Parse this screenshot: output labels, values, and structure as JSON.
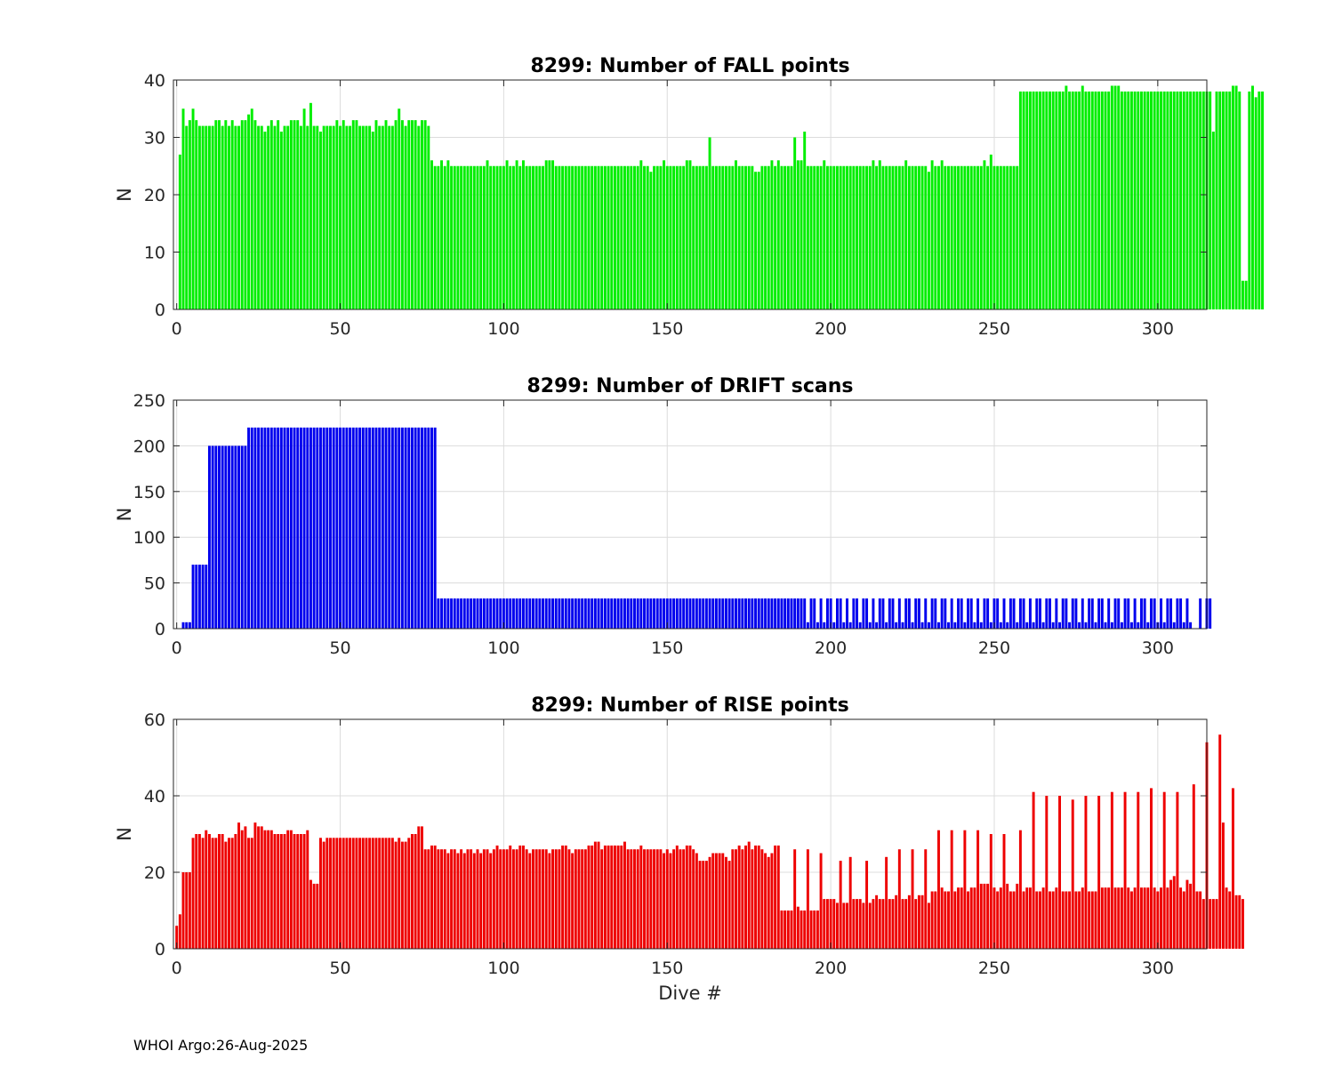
{
  "footer": {
    "text": "WHOI Argo:26-Aug-2025"
  },
  "chart_data": [
    {
      "type": "bar",
      "id": "fall",
      "title": "8299: Number of FALL points",
      "xlabel": "",
      "ylabel": "N",
      "xlim": [
        -1,
        315
      ],
      "ylim": [
        0,
        40
      ],
      "xticks": [
        0,
        50,
        100,
        150,
        200,
        250,
        300
      ],
      "yticks": [
        0,
        10,
        20,
        30,
        40
      ],
      "grid": true,
      "color": "#00ee00",
      "x_start": 0,
      "values": [
        0,
        27,
        35,
        32,
        33,
        35,
        33,
        32,
        32,
        32,
        32,
        32,
        33,
        33,
        32,
        33,
        32,
        33,
        32,
        32,
        33,
        33,
        34,
        35,
        33,
        32,
        32,
        31,
        32,
        33,
        32,
        33,
        31,
        32,
        32,
        33,
        33,
        33,
        32,
        35,
        32,
        36,
        32,
        32,
        31,
        32,
        32,
        32,
        32,
        33,
        32,
        33,
        32,
        32,
        33,
        33,
        32,
        32,
        32,
        32,
        31,
        33,
        32,
        32,
        33,
        32,
        32,
        33,
        35,
        33,
        32,
        33,
        33,
        33,
        32,
        33,
        33,
        32,
        26,
        25,
        25,
        26,
        25,
        26,
        25,
        25,
        25,
        25,
        25,
        25,
        25,
        25,
        25,
        25,
        25,
        26,
        25,
        25,
        25,
        25,
        25,
        26,
        25,
        25,
        26,
        25,
        26,
        25,
        25,
        25,
        25,
        25,
        25,
        26,
        26,
        26,
        25,
        25,
        25,
        25,
        25,
        25,
        25,
        25,
        25,
        25,
        25,
        25,
        25,
        25,
        25,
        25,
        25,
        25,
        25,
        25,
        25,
        25,
        25,
        25,
        25,
        25,
        26,
        25,
        25,
        24,
        25,
        25,
        25,
        26,
        25,
        25,
        25,
        25,
        25,
        25,
        26,
        26,
        25,
        25,
        25,
        25,
        25,
        30,
        25,
        25,
        25,
        25,
        25,
        25,
        25,
        26,
        25,
        25,
        25,
        25,
        25,
        24,
        24,
        25,
        25,
        25,
        26,
        25,
        26,
        25,
        25,
        25,
        25,
        30,
        26,
        26,
        31,
        25,
        25,
        25,
        25,
        25,
        26,
        25,
        25,
        25,
        25,
        25,
        25,
        25,
        25,
        25,
        25,
        25,
        25,
        25,
        25,
        26,
        25,
        26,
        25,
        25,
        25,
        25,
        25,
        25,
        25,
        26,
        25,
        25,
        25,
        25,
        25,
        25,
        24,
        26,
        25,
        25,
        26,
        25,
        25,
        25,
        25,
        25,
        25,
        25,
        25,
        25,
        25,
        25,
        25,
        26,
        25,
        27,
        25,
        25,
        25,
        25,
        25,
        25,
        25,
        25,
        38,
        38,
        38,
        38,
        38,
        38,
        38,
        38,
        38,
        38,
        38,
        38,
        38,
        38,
        39,
        38,
        38,
        38,
        38,
        39,
        38,
        38,
        38,
        38,
        38,
        38,
        38,
        38,
        39,
        39,
        39,
        38,
        38,
        38,
        38,
        38,
        38,
        38,
        38,
        38,
        38,
        38,
        38,
        38,
        38,
        38,
        38,
        38,
        38,
        38,
        38,
        38,
        38,
        38,
        38,
        38,
        38,
        38,
        38,
        31,
        38,
        38,
        38,
        38,
        38,
        39,
        39,
        38,
        5,
        5,
        38,
        39,
        37,
        38,
        38
      ]
    },
    {
      "type": "bar",
      "id": "drift",
      "title": "8299: Number of DRIFT scans",
      "xlabel": "",
      "ylabel": "N",
      "xlim": [
        -1,
        315
      ],
      "ylim": [
        0,
        250
      ],
      "xticks": [
        0,
        50,
        100,
        150,
        200,
        250,
        300
      ],
      "yticks": [
        0,
        50,
        100,
        150,
        200,
        250
      ],
      "grid": true,
      "color": "#0000ee",
      "x_start": 0,
      "values": [
        0,
        0,
        7,
        7,
        7,
        70,
        70,
        70,
        70,
        70,
        200,
        200,
        200,
        200,
        200,
        200,
        200,
        200,
        200,
        200,
        200,
        200,
        220,
        220,
        220,
        220,
        220,
        220,
        220,
        220,
        220,
        220,
        220,
        220,
        220,
        220,
        220,
        220,
        220,
        220,
        220,
        220,
        220,
        220,
        220,
        220,
        220,
        220,
        220,
        220,
        220,
        220,
        220,
        220,
        220,
        220,
        220,
        220,
        220,
        220,
        220,
        220,
        220,
        220,
        220,
        220,
        220,
        220,
        220,
        220,
        220,
        220,
        220,
        220,
        220,
        220,
        220,
        220,
        220,
        220,
        33,
        33,
        33,
        33,
        33,
        33,
        33,
        33,
        33,
        33,
        33,
        33,
        33,
        33,
        33,
        33,
        33,
        33,
        33,
        33,
        33,
        33,
        33,
        33,
        33,
        33,
        33,
        33,
        33,
        33,
        33,
        33,
        33,
        33,
        33,
        33,
        33,
        33,
        33,
        33,
        33,
        33,
        33,
        33,
        33,
        33,
        33,
        33,
        33,
        33,
        33,
        33,
        33,
        33,
        33,
        33,
        33,
        33,
        33,
        33,
        33,
        33,
        33,
        33,
        33,
        33,
        33,
        33,
        33,
        33,
        33,
        33,
        33,
        33,
        33,
        33,
        33,
        33,
        33,
        33,
        33,
        33,
        33,
        33,
        33,
        33,
        33,
        33,
        33,
        33,
        33,
        33,
        33,
        33,
        33,
        33,
        33,
        33,
        33,
        33,
        33,
        33,
        33,
        33,
        33,
        33,
        33,
        33,
        33,
        33,
        33,
        33,
        33,
        7,
        33,
        33,
        7,
        33,
        7,
        33,
        33,
        7,
        33,
        33,
        7,
        33,
        7,
        33,
        33,
        7,
        33,
        33,
        7,
        33,
        7,
        33,
        33,
        7,
        33,
        33,
        7,
        33,
        7,
        33,
        33,
        7,
        33,
        33,
        7,
        33,
        7,
        33,
        33,
        7,
        33,
        33,
        7,
        33,
        7,
        33,
        33,
        7,
        33,
        33,
        7,
        33,
        7,
        33,
        33,
        7,
        33,
        33,
        7,
        33,
        7,
        33,
        33,
        7,
        33,
        33,
        7,
        33,
        7,
        33,
        33,
        7,
        33,
        33,
        7,
        33,
        7,
        33,
        33,
        7,
        33,
        33,
        7,
        33,
        7,
        33,
        33,
        7,
        33,
        33,
        7,
        33,
        7,
        33,
        33,
        7,
        33,
        33,
        7,
        33,
        7,
        33,
        33,
        7,
        33,
        33,
        7,
        33,
        7,
        33,
        33,
        7,
        33,
        33,
        7,
        33,
        7,
        0,
        0,
        33,
        0,
        33,
        33
      ]
    },
    {
      "type": "bar",
      "id": "rise",
      "title": "8299: Number of RISE points",
      "xlabel": "Dive #",
      "ylabel": "N",
      "xlim": [
        -1,
        315
      ],
      "ylim": [
        0,
        60
      ],
      "xticks": [
        0,
        50,
        100,
        150,
        200,
        250,
        300
      ],
      "yticks": [
        0,
        20,
        40,
        60
      ],
      "grid": true,
      "color": "#ee0000",
      "x_start": 0,
      "values": [
        6,
        9,
        20,
        20,
        20,
        29,
        30,
        30,
        29,
        31,
        30,
        29,
        29,
        30,
        30,
        28,
        29,
        29,
        30,
        33,
        31,
        32,
        29,
        29,
        33,
        32,
        32,
        31,
        31,
        31,
        30,
        30,
        30,
        30,
        31,
        31,
        30,
        30,
        30,
        30,
        31,
        18,
        17,
        17,
        29,
        28,
        29,
        29,
        29,
        29,
        29,
        29,
        29,
        29,
        29,
        29,
        29,
        29,
        29,
        29,
        29,
        29,
        29,
        29,
        29,
        29,
        29,
        28,
        29,
        28,
        28,
        29,
        30,
        30,
        32,
        32,
        26,
        26,
        27,
        27,
        26,
        26,
        26,
        25,
        26,
        26,
        25,
        26,
        25,
        26,
        26,
        25,
        26,
        25,
        26,
        26,
        25,
        26,
        27,
        26,
        26,
        26,
        27,
        26,
        26,
        27,
        27,
        26,
        25,
        26,
        26,
        26,
        26,
        26,
        25,
        26,
        26,
        26,
        27,
        27,
        26,
        25,
        26,
        26,
        26,
        26,
        27,
        27,
        28,
        28,
        26,
        27,
        27,
        27,
        27,
        27,
        27,
        28,
        26,
        26,
        26,
        26,
        27,
        26,
        26,
        26,
        26,
        26,
        26,
        25,
        26,
        25,
        26,
        27,
        26,
        26,
        27,
        27,
        26,
        25,
        23,
        23,
        23,
        24,
        25,
        25,
        25,
        25,
        24,
        23,
        26,
        26,
        27,
        26,
        27,
        28,
        26,
        27,
        27,
        26,
        25,
        24,
        25,
        27,
        27,
        10,
        10,
        10,
        10,
        26,
        11,
        10,
        10,
        26,
        10,
        10,
        10,
        25,
        13,
        13,
        13,
        13,
        12,
        23,
        12,
        12,
        24,
        13,
        13,
        13,
        12,
        23,
        12,
        13,
        14,
        13,
        13,
        24,
        13,
        13,
        14,
        26,
        13,
        13,
        14,
        26,
        13,
        14,
        14,
        26,
        12,
        15,
        15,
        31,
        16,
        15,
        15,
        31,
        15,
        16,
        16,
        31,
        15,
        16,
        16,
        31,
        17,
        17,
        17,
        30,
        16,
        15,
        16,
        30,
        17,
        15,
        15,
        17,
        31,
        15,
        16,
        16,
        41,
        15,
        15,
        16,
        40,
        15,
        15,
        16,
        40,
        15,
        15,
        15,
        39,
        15,
        15,
        16,
        40,
        15,
        15,
        15,
        40,
        16,
        16,
        16,
        41,
        16,
        16,
        16,
        41,
        16,
        15,
        16,
        41,
        16,
        16,
        16,
        42,
        16,
        15,
        16,
        41,
        16,
        18,
        19,
        41,
        16,
        15,
        18,
        17,
        43,
        15,
        15,
        13,
        54,
        13,
        13,
        13,
        56,
        33,
        16,
        15,
        42,
        14,
        14,
        13
      ]
    }
  ]
}
